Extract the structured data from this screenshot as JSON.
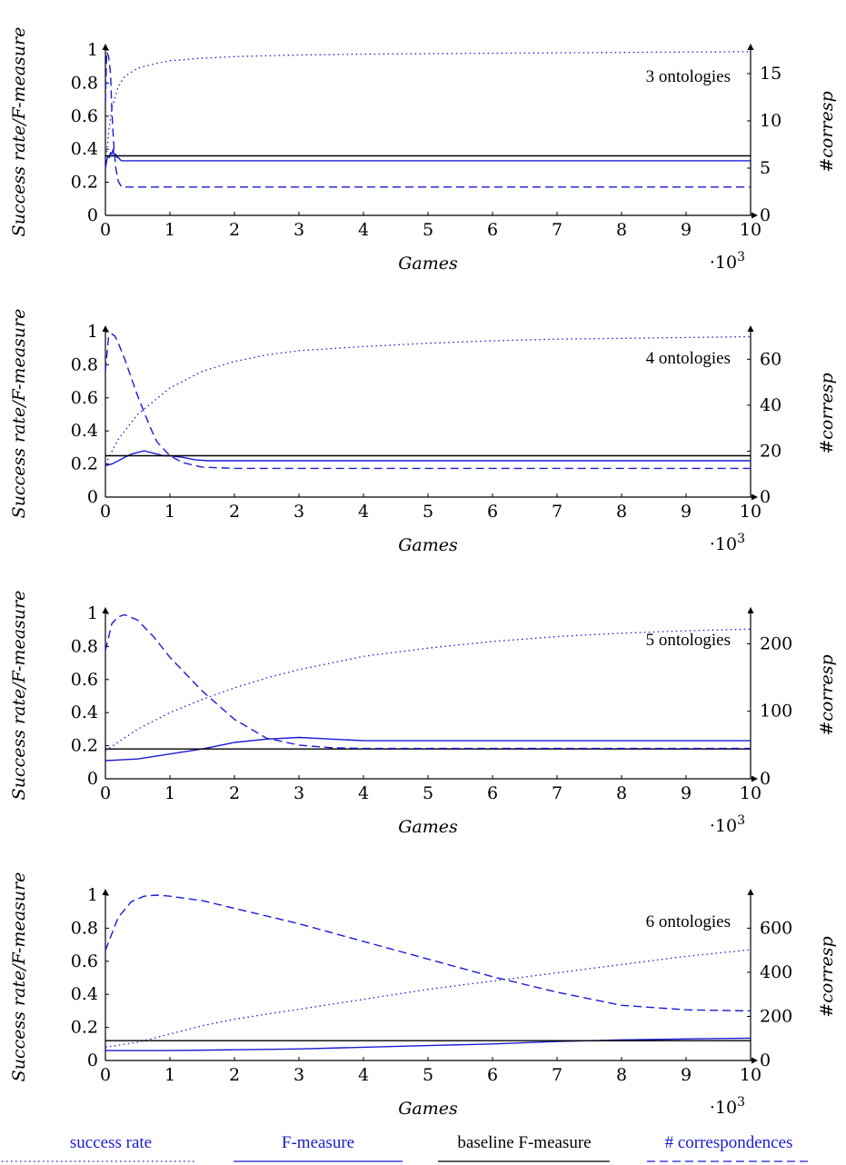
{
  "colors": {
    "series": "#1a1ad6",
    "baseline": "#000000",
    "axis": "#000000"
  },
  "legend": {
    "position": "bottom",
    "items": [
      {
        "label": "success rate",
        "style": "dotted",
        "color": "#1a1ad6"
      },
      {
        "label": "F-measure",
        "style": "solid",
        "color": "#1a1ad6"
      },
      {
        "label": "baseline F-measure",
        "style": "solid",
        "color": "#000000"
      },
      {
        "label": "# correspondences",
        "style": "dashed",
        "color": "#1a1ad6"
      }
    ]
  },
  "chart_data": [
    {
      "type": "line",
      "annotation": "3 ontologies",
      "xlabel": "Games",
      "ylabel": "Success rate/F-measure",
      "y2label": "#corresp",
      "x_multiplier": "·10",
      "x_multiplier_exp": "3",
      "xlim": [
        0,
        10
      ],
      "ylim": [
        0,
        1
      ],
      "y2lim": [
        0,
        17.5
      ],
      "x_ticks": [
        "0",
        "1",
        "2",
        "3",
        "4",
        "5",
        "6",
        "7",
        "8",
        "9",
        "10"
      ],
      "y_ticks": [
        "0",
        "0.2",
        "0.4",
        "0.6",
        "0.8",
        "1"
      ],
      "y2_ticks": [
        "0",
        "5",
        "10",
        "15"
      ],
      "y2_tick_values": [
        0,
        5,
        10,
        15
      ],
      "series": [
        {
          "name": "success rate",
          "axis": "left",
          "style": "dotted",
          "x": [
            0,
            0.05,
            0.1,
            0.2,
            0.3,
            0.5,
            0.8,
            1,
            1.5,
            2,
            3,
            4,
            6,
            8,
            10
          ],
          "y": [
            0.3,
            0.5,
            0.65,
            0.78,
            0.84,
            0.89,
            0.92,
            0.935,
            0.95,
            0.96,
            0.97,
            0.975,
            0.98,
            0.985,
            0.99
          ]
        },
        {
          "name": "F-measure",
          "axis": "left",
          "style": "solid",
          "x": [
            0,
            0.02,
            0.04,
            0.06,
            0.08,
            0.1,
            0.12,
            0.14,
            0.16,
            0.18,
            0.2,
            0.22,
            0.25,
            10
          ],
          "y": [
            0.28,
            0.33,
            0.36,
            0.35,
            0.38,
            0.37,
            0.4,
            0.36,
            0.37,
            0.35,
            0.35,
            0.34,
            0.33,
            0.33
          ]
        },
        {
          "name": "baseline F-measure",
          "axis": "left",
          "style": "solid-black",
          "x": [
            0,
            10
          ],
          "y": [
            0.36,
            0.36
          ]
        },
        {
          "name": "# correspondences",
          "axis": "right",
          "style": "dashed",
          "x": [
            0,
            0.02,
            0.05,
            0.08,
            0.1,
            0.13,
            0.16,
            0.2,
            0.25,
            0.3,
            10
          ],
          "y": [
            12,
            17.3,
            16.8,
            15,
            11,
            7.5,
            5,
            3.6,
            3.0,
            3.0,
            3.0
          ]
        }
      ]
    },
    {
      "type": "line",
      "annotation": "4 ontologies",
      "xlabel": "Games",
      "ylabel": "Success rate/F-measure",
      "y2label": "#corresp",
      "x_multiplier": "·10",
      "x_multiplier_exp": "3",
      "xlim": [
        0,
        10
      ],
      "ylim": [
        0,
        1
      ],
      "y2lim": [
        0,
        72
      ],
      "x_ticks": [
        "0",
        "1",
        "2",
        "3",
        "4",
        "5",
        "6",
        "7",
        "8",
        "9",
        "10"
      ],
      "y_ticks": [
        "0",
        "0.2",
        "0.4",
        "0.6",
        "0.8",
        "1"
      ],
      "y2_ticks": [
        "0",
        "20",
        "40",
        "60"
      ],
      "y2_tick_values": [
        0,
        20,
        40,
        60
      ],
      "series": [
        {
          "name": "success rate",
          "axis": "left",
          "style": "dotted",
          "x": [
            0,
            0.2,
            0.5,
            1,
            1.5,
            2,
            2.5,
            3,
            4,
            5,
            6,
            7,
            8,
            9,
            10
          ],
          "y": [
            0.2,
            0.35,
            0.5,
            0.66,
            0.76,
            0.82,
            0.86,
            0.885,
            0.91,
            0.93,
            0.945,
            0.955,
            0.96,
            0.965,
            0.97
          ]
        },
        {
          "name": "F-measure",
          "axis": "left",
          "style": "solid",
          "x": [
            0,
            0.1,
            0.2,
            0.3,
            0.4,
            0.5,
            0.6,
            0.7,
            0.8,
            0.9,
            1.0,
            1.1,
            1.2,
            1.4,
            1.6,
            10
          ],
          "y": [
            0.19,
            0.2,
            0.22,
            0.24,
            0.26,
            0.27,
            0.28,
            0.27,
            0.26,
            0.25,
            0.25,
            0.245,
            0.24,
            0.225,
            0.22,
            0.22
          ]
        },
        {
          "name": "baseline F-measure",
          "axis": "left",
          "style": "solid-black",
          "x": [
            0,
            10
          ],
          "y": [
            0.25,
            0.25
          ]
        },
        {
          "name": "# correspondences",
          "axis": "right",
          "style": "dashed",
          "x": [
            0,
            0.05,
            0.1,
            0.15,
            0.2,
            0.3,
            0.4,
            0.5,
            0.6,
            0.7,
            0.8,
            1.0,
            1.2,
            1.5,
            2,
            10
          ],
          "y": [
            55,
            70,
            71,
            70,
            67,
            60,
            52,
            44,
            37,
            30,
            24,
            18,
            15,
            13,
            12.5,
            12.5
          ]
        }
      ]
    },
    {
      "type": "line",
      "annotation": "5 ontologies",
      "xlabel": "Games",
      "ylabel": "Success rate/F-measure",
      "y2label": "#corresp",
      "x_multiplier": "·10",
      "x_multiplier_exp": "3",
      "xlim": [
        0,
        10
      ],
      "ylim": [
        0,
        1
      ],
      "y2lim": [
        0,
        245
      ],
      "x_ticks": [
        "0",
        "1",
        "2",
        "3",
        "4",
        "5",
        "6",
        "7",
        "8",
        "9",
        "10"
      ],
      "y_ticks": [
        "0",
        "0.2",
        "0.4",
        "0.6",
        "0.8",
        "1"
      ],
      "y2_ticks": [
        "0",
        "100",
        "200"
      ],
      "y2_tick_values": [
        0,
        100,
        200
      ],
      "series": [
        {
          "name": "success rate",
          "axis": "left",
          "style": "dotted",
          "x": [
            0,
            0.5,
            1,
            1.5,
            2,
            2.5,
            3,
            3.5,
            4,
            5,
            6,
            7,
            8,
            9,
            10
          ],
          "y": [
            0.17,
            0.3,
            0.4,
            0.48,
            0.55,
            0.61,
            0.66,
            0.7,
            0.74,
            0.79,
            0.83,
            0.86,
            0.88,
            0.895,
            0.905
          ]
        },
        {
          "name": "F-measure",
          "axis": "left",
          "style": "solid",
          "x": [
            0,
            0.5,
            1,
            1.5,
            2,
            2.5,
            3,
            3.5,
            4,
            10
          ],
          "y": [
            0.11,
            0.12,
            0.15,
            0.18,
            0.22,
            0.24,
            0.25,
            0.24,
            0.23,
            0.23
          ]
        },
        {
          "name": "baseline F-measure",
          "axis": "left",
          "style": "solid-black",
          "x": [
            0,
            10
          ],
          "y": [
            0.18,
            0.18
          ]
        },
        {
          "name": "# correspondences",
          "axis": "right",
          "style": "dashed",
          "x": [
            0,
            0.1,
            0.2,
            0.3,
            0.5,
            0.75,
            1,
            1.5,
            2,
            2.5,
            3,
            3.5,
            4,
            5,
            10
          ],
          "y": [
            190,
            230,
            240,
            243,
            235,
            210,
            180,
            130,
            88,
            60,
            50,
            46,
            45,
            45,
            45
          ]
        }
      ]
    },
    {
      "type": "line",
      "annotation": "6 ontologies",
      "xlabel": "Games",
      "ylabel": "Success rate/F-measure",
      "y2label": "#corresp",
      "x_multiplier": "·10",
      "x_multiplier_exp": "3",
      "xlim": [
        0,
        10
      ],
      "ylim": [
        0,
        1
      ],
      "y2lim": [
        0,
        750
      ],
      "x_ticks": [
        "0",
        "1",
        "2",
        "3",
        "4",
        "5",
        "6",
        "7",
        "8",
        "9",
        "10"
      ],
      "y_ticks": [
        "0",
        "0.2",
        "0.4",
        "0.6",
        "0.8",
        "1"
      ],
      "y2_ticks": [
        "0",
        "200",
        "400",
        "600"
      ],
      "y2_tick_values": [
        0,
        200,
        400,
        600
      ],
      "series": [
        {
          "name": "success rate",
          "axis": "left",
          "style": "dotted",
          "x": [
            0,
            0.5,
            1,
            1.5,
            2,
            3,
            4,
            5,
            6,
            7,
            8,
            9,
            10
          ],
          "y": [
            0.08,
            0.11,
            0.16,
            0.21,
            0.25,
            0.31,
            0.37,
            0.43,
            0.48,
            0.53,
            0.58,
            0.63,
            0.67
          ]
        },
        {
          "name": "F-measure",
          "axis": "left",
          "style": "solid",
          "x": [
            0,
            1,
            2,
            3,
            4,
            5,
            6,
            7,
            8,
            9,
            10
          ],
          "y": [
            0.06,
            0.06,
            0.065,
            0.07,
            0.08,
            0.09,
            0.1,
            0.115,
            0.125,
            0.13,
            0.135
          ]
        },
        {
          "name": "baseline F-measure",
          "axis": "left",
          "style": "solid-black",
          "x": [
            0,
            10
          ],
          "y": [
            0.12,
            0.12
          ]
        },
        {
          "name": "# correspondences",
          "axis": "right",
          "style": "dashed",
          "x": [
            0,
            0.2,
            0.4,
            0.6,
            0.8,
            1,
            1.5,
            2,
            3,
            4,
            5,
            6,
            7,
            8,
            9,
            10
          ],
          "y": [
            500,
            650,
            720,
            745,
            750,
            745,
            725,
            690,
            620,
            540,
            460,
            380,
            310,
            250,
            230,
            225
          ]
        }
      ]
    }
  ]
}
